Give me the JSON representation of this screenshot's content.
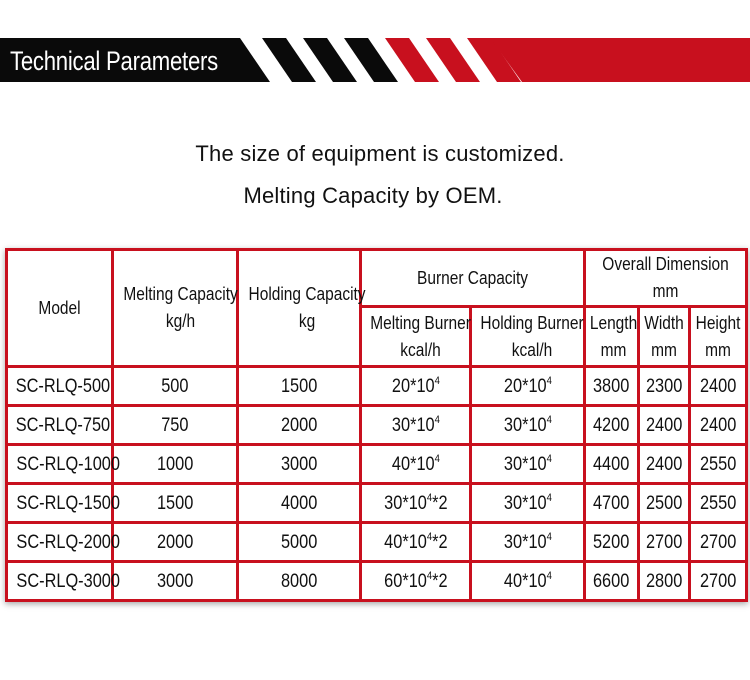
{
  "banner": {
    "title": "Technical Parameters",
    "colors": {
      "black": "#0a0a0a",
      "red": "#c8101e",
      "white": "#ffffff"
    }
  },
  "subtitle": {
    "line1": "The size of equipment is customized.",
    "line2": "Melting Capacity by OEM."
  },
  "table": {
    "headers": {
      "model": "Model",
      "melting_capacity": {
        "line1": "Melting Capacity",
        "line2": "kg/h"
      },
      "holding_capacity": {
        "line1": "Holding Capacity",
        "line2": "kg"
      },
      "burner_capacity": "Burner Capacity",
      "overall_dimension": {
        "line1": "Overall Dimension",
        "line2": "mm"
      },
      "melting_burner": {
        "line1": "Melting Burner",
        "line2": "kcal/h"
      },
      "holding_burner": {
        "line1": "Holding Burner",
        "line2": "kcal/h"
      },
      "length": {
        "line1": "Length",
        "line2": "mm"
      },
      "width": {
        "line1": "Width",
        "line2": "mm"
      },
      "height": {
        "line1": "Height",
        "line2": "mm"
      }
    },
    "rows": [
      {
        "model": "SC-RLQ-500",
        "melting": "500",
        "holding": "1500",
        "mb_base": "20*10",
        "mb_exp": "4",
        "mb_suffix": "",
        "hb_base": "20*10",
        "hb_exp": "4",
        "length": "3800",
        "width": "2300",
        "height": "2400"
      },
      {
        "model": "SC-RLQ-750",
        "melting": "750",
        "holding": "2000",
        "mb_base": "30*10",
        "mb_exp": "4",
        "mb_suffix": "",
        "hb_base": "30*10",
        "hb_exp": "4",
        "length": "4200",
        "width": "2400",
        "height": "2400"
      },
      {
        "model": "SC-RLQ-1000",
        "melting": "1000",
        "holding": "3000",
        "mb_base": "40*10",
        "mb_exp": "4",
        "mb_suffix": "",
        "hb_base": "30*10",
        "hb_exp": "4",
        "length": "4400",
        "width": "2400",
        "height": "2550"
      },
      {
        "model": "SC-RLQ-1500",
        "melting": "1500",
        "holding": "4000",
        "mb_base": "30*10",
        "mb_exp": "4",
        "mb_suffix": "*2",
        "hb_base": "30*10",
        "hb_exp": "4",
        "length": "4700",
        "width": "2500",
        "height": "2550"
      },
      {
        "model": "SC-RLQ-2000",
        "melting": "2000",
        "holding": "5000",
        "mb_base": "40*10",
        "mb_exp": "4",
        "mb_suffix": "*2",
        "hb_base": "30*10",
        "hb_exp": "4",
        "length": "5200",
        "width": "2700",
        "height": "2700"
      },
      {
        "model": "SC-RLQ-3000",
        "melting": "3000",
        "holding": "8000",
        "mb_base": "60*10",
        "mb_exp": "4",
        "mb_suffix": "*2",
        "hb_base": "40*10",
        "hb_exp": "4",
        "length": "6600",
        "width": "2800",
        "height": "2700"
      }
    ]
  }
}
